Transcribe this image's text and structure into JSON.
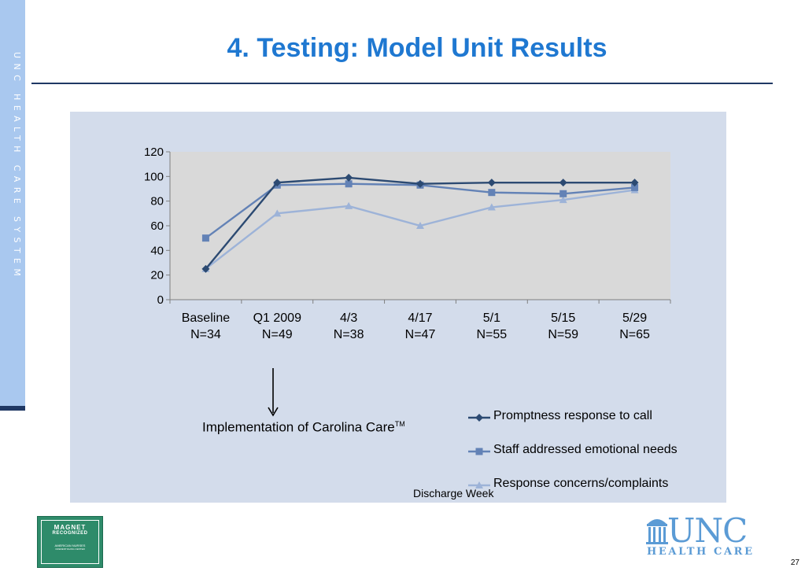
{
  "sidebar": {
    "text": "UNC HEALTH CARE SYSTEM"
  },
  "slide": {
    "title": "4. Testing: Model Unit Results",
    "page_number": "27"
  },
  "annotation": {
    "text": "Implementation of Carolina Care",
    "tm": "TM"
  },
  "logos": {
    "magnet": {
      "line1": "MAGNET",
      "line2": "RECOGNIZED",
      "line3": "AMERICAN NURSES",
      "line4": "CREDENTIALING CENTER"
    },
    "unc": {
      "big": "UNC",
      "small": "HEALTH CARE"
    }
  },
  "chart_data": {
    "type": "line",
    "title": "",
    "xlabel": "Discharge Week",
    "ylabel": "",
    "ylim": [
      0,
      120
    ],
    "yticks": [
      "0",
      "20",
      "40",
      "60",
      "80",
      "100",
      "120"
    ],
    "categories": [
      {
        "label": "Baseline",
        "n": "N=34"
      },
      {
        "label": "Q1 2009",
        "n": "N=49"
      },
      {
        "label": "4/3",
        "n": "N=38"
      },
      {
        "label": "4/17",
        "n": "N=47"
      },
      {
        "label": "5/1",
        "n": "N=55"
      },
      {
        "label": "5/15",
        "n": "N=59"
      },
      {
        "label": "5/29",
        "n": "N=65"
      }
    ],
    "series": [
      {
        "name": "Promptness response to call",
        "marker": "diamond",
        "color": "#2c4a72",
        "values": [
          25,
          95,
          99,
          94,
          95,
          95,
          95
        ]
      },
      {
        "name": "Staff addressed emotional needs",
        "marker": "square",
        "color": "#6382b6",
        "values": [
          50,
          93,
          94,
          93,
          87,
          86,
          91
        ]
      },
      {
        "name": "Response concerns/complaints",
        "marker": "triangle",
        "color": "#9db3d8",
        "values": [
          25,
          70,
          76,
          60,
          75,
          81,
          89
        ]
      }
    ],
    "grid": false,
    "legend_position": "bottom-right",
    "plot_background": "#d9d9d9"
  }
}
